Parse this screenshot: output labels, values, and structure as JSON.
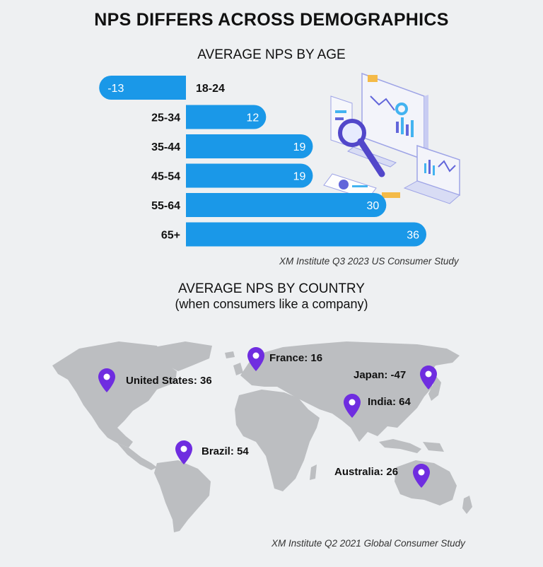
{
  "title": "NPS DIFFERS ACROSS DEMOGRAPHICS",
  "age_section": {
    "title": "AVERAGE NPS BY AGE",
    "source": "XM Institute Q3 2023 US Consumer Study"
  },
  "country_section": {
    "title": "AVERAGE NPS BY COUNTRY",
    "subtitle": "(when consumers like a company)",
    "source": "XM Institute Q2 2021 Global Consumer Study",
    "countries": [
      {
        "label": "United States: 36",
        "name": "United States",
        "value": 36
      },
      {
        "label": "France: 16",
        "name": "France",
        "value": 16
      },
      {
        "label": "Japan: -47",
        "name": "Japan",
        "value": -47
      },
      {
        "label": "India: 64",
        "name": "India",
        "value": 64
      },
      {
        "label": "Brazil: 54",
        "name": "Brazil",
        "value": 54
      },
      {
        "label": "Australia: 26",
        "name": "Australia",
        "value": 26
      }
    ]
  },
  "colors": {
    "bar": "#1a98e8",
    "pin": "#6f2de0",
    "land": "#bcbec1",
    "background": "#eef0f2"
  },
  "icons": [
    "map-pin-icon",
    "analytics-illustration"
  ],
  "chart_data": [
    {
      "type": "bar",
      "orientation": "horizontal",
      "title": "AVERAGE NPS BY AGE",
      "categories": [
        "18-24",
        "25-34",
        "35-44",
        "45-54",
        "55-64",
        "65+"
      ],
      "values": [
        -13,
        12,
        19,
        19,
        30,
        36
      ]
    }
  ]
}
